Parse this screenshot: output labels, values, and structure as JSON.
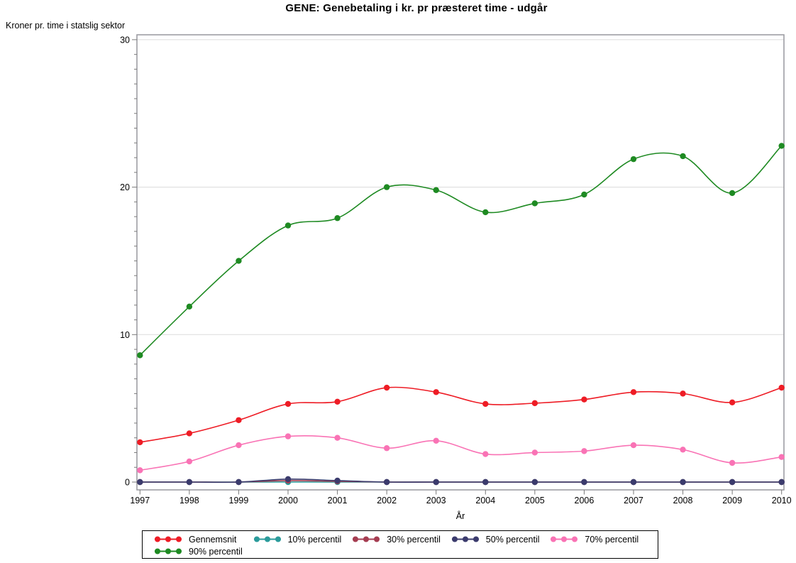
{
  "title": "GENE: Genebetaling i kr. pr præsteret time - udgår",
  "y_axis_unit_label": "Kroner pr. time i statslig sektor",
  "chart_data": {
    "type": "line",
    "title": "GENE: Genebetaling i kr. pr præsteret time - udgår",
    "xlabel": "År",
    "ylabel": "Kroner pr. time i statslig sektor",
    "x": [
      1997,
      1998,
      1999,
      2000,
      2001,
      2002,
      2003,
      2004,
      2005,
      2006,
      2007,
      2008,
      2009,
      2010
    ],
    "ylim": [
      0,
      30
    ],
    "yticks": [
      0,
      10,
      20,
      30
    ],
    "y_minor_tick_step": 1,
    "grid": "horizontal-major",
    "smooth_lines": true,
    "legend_position": "bottom",
    "frame_color": "#97979d",
    "gridline_color": "#dcdcdc",
    "tick_color": "#7a7a7a",
    "series": [
      {
        "name": "Gennemsnit",
        "color": "#ee1c25",
        "values": [
          2.7,
          3.3,
          4.2,
          5.3,
          5.45,
          6.4,
          6.1,
          5.3,
          5.35,
          5.6,
          6.1,
          6.0,
          5.4,
          6.4
        ]
      },
      {
        "name": "10% percentil",
        "color": "#2b9b9b",
        "values": [
          0,
          0,
          0,
          0,
          0,
          0,
          0,
          0,
          0,
          0,
          0,
          0,
          0,
          0
        ]
      },
      {
        "name": "30% percentil",
        "color": "#a53d51",
        "values": [
          0,
          0,
          0,
          0.1,
          0.05,
          0,
          0,
          0,
          0,
          0,
          0,
          0,
          0,
          0
        ]
      },
      {
        "name": "50% percentil",
        "color": "#3b3b6d",
        "values": [
          0,
          0,
          0,
          0.2,
          0.1,
          0,
          0,
          0,
          0,
          0,
          0,
          0,
          0,
          0
        ]
      },
      {
        "name": "70% percentil",
        "color": "#f973b5",
        "values": [
          0.8,
          1.4,
          2.5,
          3.1,
          3.0,
          2.3,
          2.8,
          1.9,
          2.0,
          2.1,
          2.5,
          2.2,
          1.3,
          1.7
        ]
      },
      {
        "name": "90% percentil",
        "color": "#1e8a22",
        "values": [
          8.6,
          11.9,
          15.0,
          17.4,
          17.9,
          20.0,
          19.8,
          18.3,
          18.9,
          19.5,
          21.9,
          22.1,
          19.6,
          22.8
        ]
      }
    ]
  }
}
